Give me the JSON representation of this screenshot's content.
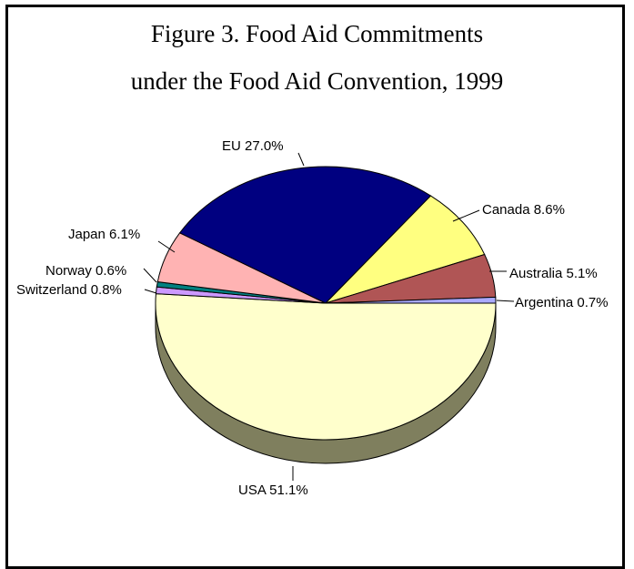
{
  "title_line1": "Figure 3.  Food Aid Commitments",
  "title_line2": "under the Food Aid Convention, 1999",
  "chart_data": {
    "type": "pie",
    "title": "Figure 3.  Food Aid Commitments under the Food Aid Convention, 1999",
    "slices": [
      {
        "name": "USA",
        "value": 51.1,
        "label": "USA 51.1%",
        "color": "#FFFFCC"
      },
      {
        "name": "Switzerland",
        "value": 0.8,
        "label": "Switzerland 0.8%",
        "color": "#CC99FF"
      },
      {
        "name": "Norway",
        "value": 0.6,
        "label": "Norway 0.6%",
        "color": "#008080"
      },
      {
        "name": "Japan",
        "value": 6.1,
        "label": "Japan 6.1%",
        "color": "#FFB3B3"
      },
      {
        "name": "EU",
        "value": 27.0,
        "label": "EU 27.0%",
        "color": "#000080"
      },
      {
        "name": "Canada",
        "value": 8.6,
        "label": "Canada 8.6%",
        "color": "#FFFF80"
      },
      {
        "name": "Australia",
        "value": 5.1,
        "label": "Australia 5.1%",
        "color": "#B05555"
      },
      {
        "name": "Argentina",
        "value": 0.7,
        "label": "Argentina 0.7%",
        "color": "#AAAAFF"
      }
    ],
    "depth_color": "#7F7F5E",
    "legend": "none",
    "grid": false
  }
}
